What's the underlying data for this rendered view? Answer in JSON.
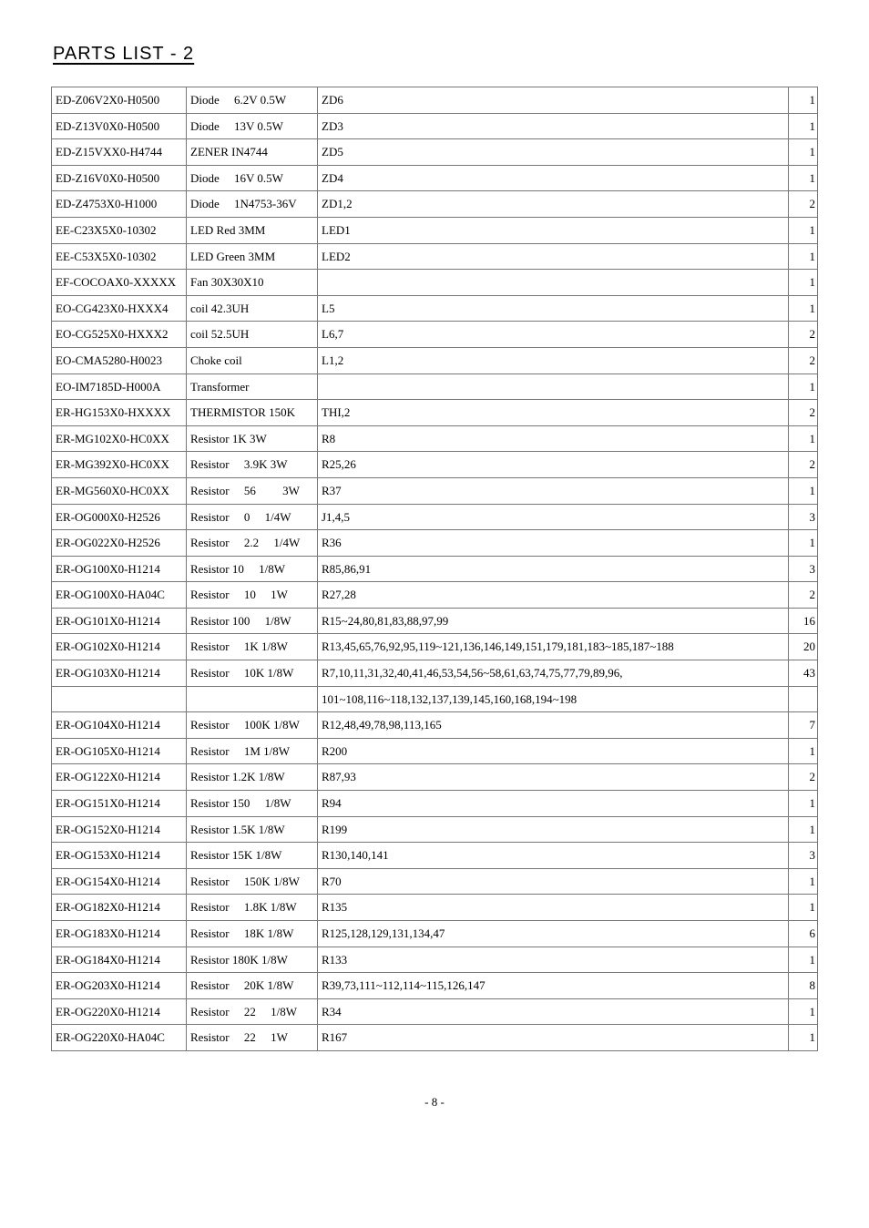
{
  "title": "PARTS LIST - 2",
  "page_number": "- 8 -",
  "rows": [
    {
      "part_no": "ED-Z06V2X0-H0500",
      "desc": "Diode  6.2V 0.5W",
      "ref": "ZD6",
      "qty": "1"
    },
    {
      "part_no": "ED-Z13V0X0-H0500",
      "desc": "Diode  13V 0.5W",
      "ref": "ZD3",
      "qty": "1"
    },
    {
      "part_no": "ED-Z15VXX0-H4744",
      "desc": "ZENER IN4744",
      "ref": "ZD5",
      "qty": "1"
    },
    {
      "part_no": "ED-Z16V0X0-H0500",
      "desc": "Diode  16V 0.5W",
      "ref": "ZD4",
      "qty": "1"
    },
    {
      "part_no": "ED-Z4753X0-H1000",
      "desc": "Diode  1N4753-36V",
      "ref": "ZD1,2",
      "qty": "2"
    },
    {
      "part_no": "EE-C23X5X0-10302",
      "desc": "LED Red 3MM",
      "ref": "LED1",
      "qty": "1"
    },
    {
      "part_no": "EE-C53X5X0-10302",
      "desc": "LED Green 3MM",
      "ref": "LED2",
      "qty": "1"
    },
    {
      "part_no": "EF-COCOAX0-XXXXX",
      "desc": "Fan 30X30X10",
      "ref": "",
      "qty": "1"
    },
    {
      "part_no": "EO-CG423X0-HXXX4",
      "desc": "coil 42.3UH",
      "ref": "L5",
      "qty": "1"
    },
    {
      "part_no": "EO-CG525X0-HXXX2",
      "desc": "coil 52.5UH",
      "ref": "L6,7",
      "qty": "2"
    },
    {
      "part_no": "EO-CMA5280-H0023",
      "desc": "Choke coil",
      "ref": "L1,2",
      "qty": "2"
    },
    {
      "part_no": "EO-IM7185D-H000A",
      "desc": "Transformer",
      "ref": "",
      "qty": "1"
    },
    {
      "part_no": "ER-HG153X0-HXXXX",
      "desc": "THERMISTOR 150K",
      "ref": "THI,2",
      "qty": "2"
    },
    {
      "part_no": "ER-MG102X0-HC0XX",
      "desc": "Resistor 1K 3W",
      "ref": "R8",
      "qty": "1"
    },
    {
      "part_no": "ER-MG392X0-HC0XX",
      "desc": "Resistor  3.9K 3W",
      "ref": "R25,26",
      "qty": "2"
    },
    {
      "part_no": "ER-MG560X0-HC0XX",
      "desc": "Resistor  56   3W",
      "ref": "R37",
      "qty": "1"
    },
    {
      "part_no": "ER-OG000X0-H2526",
      "desc": "Resistor  0  1/4W",
      "ref": "J1,4,5",
      "qty": "3"
    },
    {
      "part_no": "ER-OG022X0-H2526",
      "desc": "Resistor  2.2  1/4W",
      "ref": "R36",
      "qty": "1"
    },
    {
      "part_no": "ER-OG100X0-H1214",
      "desc": "Resistor 10  1/8W",
      "ref": "R85,86,91",
      "qty": "3"
    },
    {
      "part_no": "ER-OG100X0-HA04C",
      "desc": "Resistor  10  1W",
      "ref": "R27,28",
      "qty": "2"
    },
    {
      "part_no": "ER-OG101X0-H1214",
      "desc": "Resistor 100  1/8W",
      "ref": "R15~24,80,81,83,88,97,99",
      "qty": "16"
    },
    {
      "part_no": "ER-OG102X0-H1214",
      "desc": "Resistor  1K 1/8W",
      "ref": "R13,45,65,76,92,95,119~121,136,146,149,151,179,181,183~185,187~188",
      "qty": "20"
    },
    {
      "part_no": "ER-OG103X0-H1214",
      "desc": "Resistor  10K 1/8W",
      "ref": "R7,10,11,31,32,40,41,46,53,54,56~58,61,63,74,75,77,79,89,96,",
      "qty": "43"
    },
    {
      "part_no": "",
      "desc": "",
      "ref": "101~108,116~118,132,137,139,145,160,168,194~198",
      "qty": ""
    },
    {
      "part_no": "ER-OG104X0-H1214",
      "desc": "Resistor  100K 1/8W",
      "ref": "R12,48,49,78,98,113,165",
      "qty": "7"
    },
    {
      "part_no": "ER-OG105X0-H1214",
      "desc": "Resistor  1M 1/8W",
      "ref": "R200",
      "qty": "1"
    },
    {
      "part_no": "ER-OG122X0-H1214",
      "desc": "Resistor 1.2K 1/8W",
      "ref": "R87,93",
      "qty": "2"
    },
    {
      "part_no": "ER-OG151X0-H1214",
      "desc": "Resistor 150  1/8W",
      "ref": "R94",
      "qty": "1"
    },
    {
      "part_no": "ER-OG152X0-H1214",
      "desc": "Resistor 1.5K 1/8W",
      "ref": "R199",
      "qty": "1"
    },
    {
      "part_no": "ER-OG153X0-H1214",
      "desc": "Resistor 15K 1/8W",
      "ref": "R130,140,141",
      "qty": "3"
    },
    {
      "part_no": "ER-OG154X0-H1214",
      "desc": "Resistor  150K 1/8W",
      "ref": "R70",
      "qty": "1"
    },
    {
      "part_no": "ER-OG182X0-H1214",
      "desc": "Resistor  1.8K 1/8W",
      "ref": "R135",
      "qty": "1"
    },
    {
      "part_no": "ER-OG183X0-H1214",
      "desc": "Resistor  18K 1/8W",
      "ref": "R125,128,129,131,134,47",
      "qty": "6"
    },
    {
      "part_no": "ER-OG184X0-H1214",
      "desc": "Resistor 180K 1/8W",
      "ref": "R133",
      "qty": "1"
    },
    {
      "part_no": "ER-OG203X0-H1214",
      "desc": "Resistor  20K 1/8W",
      "ref": "R39,73,111~112,114~115,126,147",
      "qty": "8"
    },
    {
      "part_no": "ER-OG220X0-H1214",
      "desc": "Resistor  22  1/8W",
      "ref": "R34",
      "qty": "1"
    },
    {
      "part_no": "ER-OG220X0-HA04C",
      "desc": "Resistor  22  1W",
      "ref": "R167",
      "qty": "1"
    }
  ]
}
